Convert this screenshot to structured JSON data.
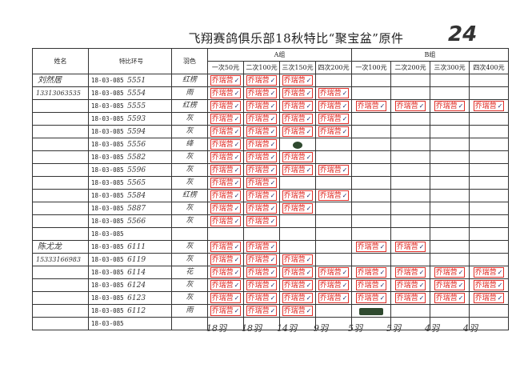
{
  "title": "飞翔赛鸽俱乐部18秋特比“聚宝盆”原件",
  "page_number": "24",
  "headers": {
    "name": "姓名",
    "ring": "特比环号",
    "color": "羽色",
    "group_a": "A组",
    "group_b": "B组",
    "a_cols": [
      "一次50元",
      "二次100元",
      "三次150元",
      "四次200元"
    ],
    "b_cols": [
      "一次100元",
      "二次200元",
      "三次300元",
      "四次400元"
    ]
  },
  "stamp_text": "乔瑞营",
  "stamp_color": "#e0302a",
  "rows": [
    {
      "name": "刘然居",
      "ring_prefix": "18-03-085",
      "ring_suffix": "5551",
      "color": "红楞",
      "stamps": [
        1,
        1,
        1,
        0,
        0,
        0,
        0,
        0
      ]
    },
    {
      "name": "13313063535",
      "ring_prefix": "18-03-085",
      "ring_suffix": "5554",
      "color": "雨",
      "stamps": [
        1,
        1,
        1,
        1,
        0,
        0,
        0,
        0
      ]
    },
    {
      "name": "",
      "ring_prefix": "18-03-085",
      "ring_suffix": "5555",
      "color": "红楞",
      "stamps": [
        1,
        1,
        1,
        1,
        1,
        1,
        1,
        1
      ]
    },
    {
      "name": "",
      "ring_prefix": "18-03-085",
      "ring_suffix": "5593",
      "color": "灰",
      "stamps": [
        1,
        1,
        1,
        1,
        0,
        0,
        0,
        0
      ]
    },
    {
      "name": "",
      "ring_prefix": "18-03-085",
      "ring_suffix": "5594",
      "color": "灰",
      "stamps": [
        1,
        1,
        1,
        1,
        0,
        0,
        0,
        0
      ]
    },
    {
      "name": "",
      "ring_prefix": "18-03-085",
      "ring_suffix": "5556",
      "color": "绛",
      "stamps": [
        1,
        1,
        2,
        0,
        0,
        0,
        0,
        0
      ]
    },
    {
      "name": "",
      "ring_prefix": "18-03-085",
      "ring_suffix": "5582",
      "color": "灰",
      "stamps": [
        1,
        1,
        1,
        0,
        0,
        0,
        0,
        0
      ]
    },
    {
      "name": "",
      "ring_prefix": "18-03-085",
      "ring_suffix": "5596",
      "color": "灰",
      "stamps": [
        1,
        1,
        1,
        1,
        0,
        0,
        0,
        0
      ]
    },
    {
      "name": "",
      "ring_prefix": "18-03-085",
      "ring_suffix": "5565",
      "color": "灰",
      "stamps": [
        1,
        1,
        0,
        0,
        0,
        0,
        0,
        0
      ]
    },
    {
      "name": "",
      "ring_prefix": "18-03-085",
      "ring_suffix": "5584",
      "color": "红楞",
      "stamps": [
        1,
        1,
        1,
        1,
        0,
        0,
        0,
        0
      ]
    },
    {
      "name": "",
      "ring_prefix": "18-03-085",
      "ring_suffix": "5887",
      "color": "灰",
      "stamps": [
        1,
        1,
        1,
        0,
        0,
        0,
        0,
        0
      ]
    },
    {
      "name": "",
      "ring_prefix": "18-03-085",
      "ring_suffix": "5566",
      "color": "灰",
      "stamps": [
        1,
        1,
        0,
        0,
        0,
        0,
        0,
        0
      ]
    },
    {
      "name": "",
      "ring_prefix": "18-03-085",
      "ring_suffix": "",
      "color": "",
      "stamps": [
        0,
        0,
        0,
        0,
        0,
        0,
        0,
        0
      ]
    },
    {
      "name": "陈尤龙",
      "ring_prefix": "18-03-085",
      "ring_suffix": "6111",
      "color": "灰",
      "stamps": [
        1,
        1,
        0,
        0,
        1,
        1,
        0,
        0
      ]
    },
    {
      "name": "15333166983",
      "ring_prefix": "18-03-085",
      "ring_suffix": "6119",
      "color": "灰",
      "stamps": [
        1,
        1,
        1,
        0,
        0,
        0,
        0,
        0
      ]
    },
    {
      "name": "",
      "ring_prefix": "18-03-085",
      "ring_suffix": "6114",
      "color": "花",
      "stamps": [
        1,
        1,
        1,
        1,
        1,
        1,
        1,
        1
      ]
    },
    {
      "name": "",
      "ring_prefix": "18-03-085",
      "ring_suffix": "6124",
      "color": "灰",
      "stamps": [
        1,
        1,
        1,
        1,
        1,
        1,
        1,
        1
      ]
    },
    {
      "name": "",
      "ring_prefix": "18-03-085",
      "ring_suffix": "6123",
      "color": "灰",
      "stamps": [
        1,
        1,
        1,
        1,
        1,
        1,
        1,
        1
      ]
    },
    {
      "name": "",
      "ring_prefix": "18-03-085",
      "ring_suffix": "6112",
      "color": "雨",
      "stamps": [
        1,
        1,
        1,
        0,
        2,
        0,
        0,
        0
      ]
    },
    {
      "name": "",
      "ring_prefix": "18-03-085",
      "ring_suffix": "",
      "color": "",
      "stamps": [
        0,
        0,
        0,
        0,
        0,
        0,
        0,
        0
      ]
    }
  ],
  "totals": [
    "18羽",
    "18羽",
    "14羽",
    "9羽",
    "5羽",
    "5羽",
    "4羽",
    "4羽"
  ]
}
